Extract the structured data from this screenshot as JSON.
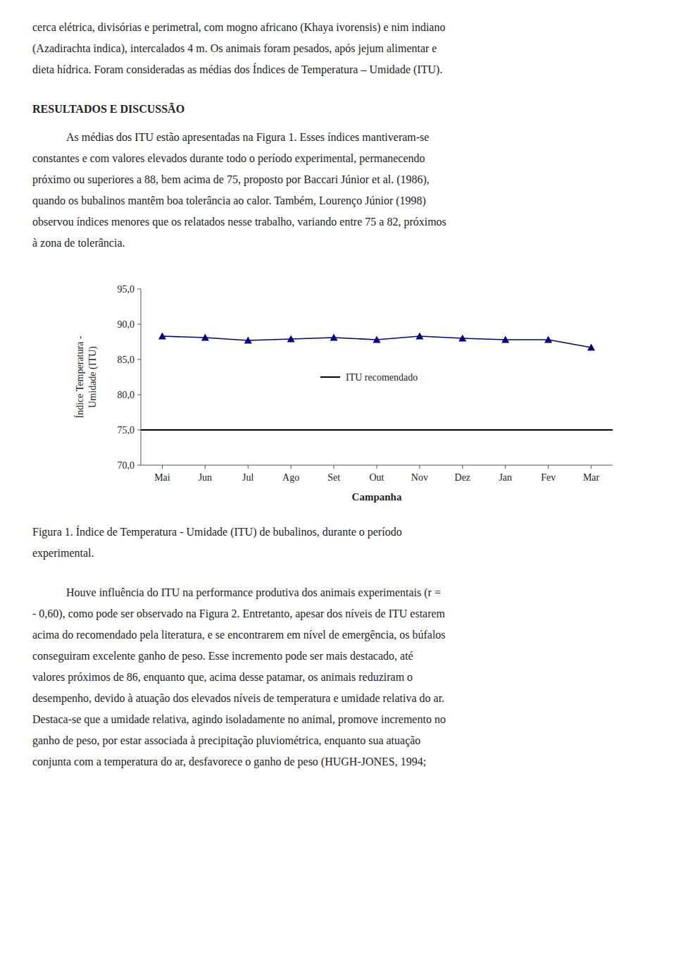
{
  "page": {
    "top_lines": [
      "cerca elétrica, divisórias e perimetral, com mogno africano (Khaya ivorensis) e nim indiano",
      "(Azadirachta indica), intercalados 4 m. Os animais foram pesados, após jejum alimentar e",
      "dieta hídrica. Foram consideradas as médias dos Índices de Temperatura – Umidade (ITU)."
    ],
    "section_title": "RESULTADOS E DISCUSSÃO",
    "paragraph_1": [
      "As médias dos ITU estão apresentadas na Figura 1. Esses índices mantiveram-se",
      "constantes e com valores elevados durante todo o período experimental, permanecendo",
      "próximo ou superiores a 88, bem acima de 75, proposto por Baccari Júnior et al. (1986),",
      "quando os bubalinos mantêm boa tolerância ao calor. Também, Lourenço Júnior (1998)",
      "observou índices menores que os relatados nesse trabalho, variando entre 75 a 82, próximos",
      "à zona de tolerância."
    ],
    "caption": [
      "Figura 1. Índice de Temperatura - Umidade (ITU) de bubalinos, durante o período",
      "experimental."
    ],
    "paragraph_2": [
      "Houve influência do ITU na performance produtiva dos animais experimentais (r =",
      "- 0,60), como pode ser observado na Figura 2. Entretanto, apesar dos níveis de ITU estarem",
      "acima do recomendado pela literatura, e se encontrarem em nível de emergência, os búfalos",
      "conseguiram excelente ganho de peso. Esse incremento pode ser mais destacado, até",
      "valores próximos de 86, enquanto que, acima desse patamar, os animais reduziram o",
      "desempenho, devido à atuação dos elevados níveis de temperatura e umidade relativa do ar.",
      "Destaca-se que a umidade relativa, agindo isoladamente no animal, promove incremento no",
      "ganho de peso, por estar associada à precipitação pluviométrica, enquanto sua atuação",
      "conjunta com a temperatura do ar, desfavorece o ganho de peso (HUGH-JONES, 1994;"
    ]
  },
  "chart_data": {
    "type": "line",
    "categories": [
      "Mai",
      "Jun",
      "Jul",
      "Ago",
      "Set",
      "Out",
      "Nov",
      "Dez",
      "Jan",
      "Fev",
      "Mar"
    ],
    "values": [
      88.3,
      88.1,
      87.7,
      87.9,
      88.1,
      87.8,
      88.3,
      88.0,
      87.8,
      87.8,
      86.7
    ],
    "color": "#00008B",
    "marker": "triangle",
    "line_style": "solid",
    "reference_line": {
      "name": "ITU recomendado",
      "value": 75.0,
      "color": "#000000"
    },
    "x_label": "Campanha",
    "y_label": "Índice Temperatura -\nUmidade (ITU)",
    "ylim": [
      70.0,
      95.0
    ],
    "yticks": [
      {
        "value": 70.0,
        "label": "70,0"
      },
      {
        "value": 75.0,
        "label": "75,0"
      },
      {
        "value": 80.0,
        "label": "80,0"
      },
      {
        "value": 85.0,
        "label": "85,0"
      },
      {
        "value": 90.0,
        "label": "90,0"
      },
      {
        "value": 95.0,
        "label": "95,0"
      }
    ],
    "grid": false,
    "legend": "center"
  }
}
